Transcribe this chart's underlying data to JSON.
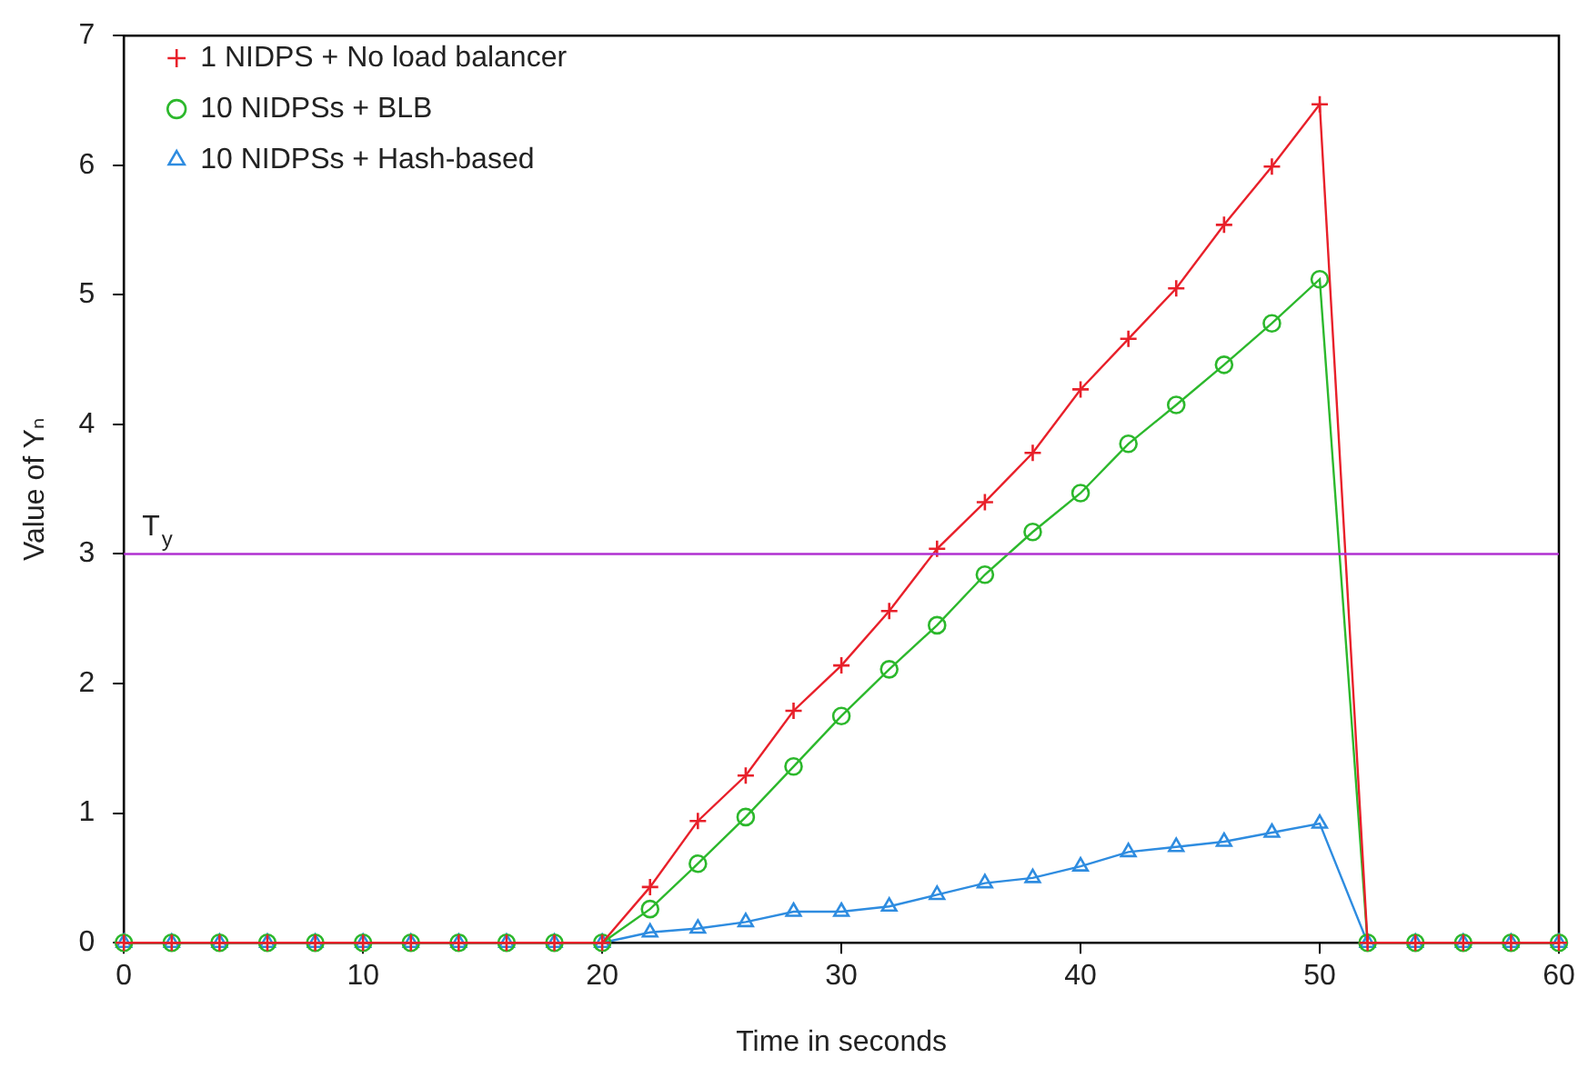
{
  "chart_data": {
    "type": "line",
    "xlabel": "Time in seconds",
    "ylabel": "Value of Yₙ",
    "x": [
      0,
      2,
      4,
      6,
      8,
      10,
      12,
      14,
      16,
      18,
      20,
      22,
      24,
      26,
      28,
      30,
      32,
      34,
      36,
      38,
      40,
      42,
      44,
      46,
      48,
      50,
      52,
      54,
      56,
      58,
      60
    ],
    "series": [
      {
        "name": "1 NIDPS + No load balancer",
        "color": "#e8202a",
        "marker": "cross",
        "values": [
          0,
          0,
          0,
          0,
          0,
          0,
          0,
          0,
          0,
          0,
          0,
          0.43,
          0.94,
          1.29,
          1.79,
          2.14,
          2.56,
          3.04,
          3.4,
          3.78,
          4.27,
          4.66,
          5.05,
          5.54,
          5.99,
          6.47,
          0,
          0,
          0,
          0,
          0
        ]
      },
      {
        "name": "10 NIDPSs + BLB",
        "color": "#2cb82c",
        "marker": "circle",
        "values": [
          0,
          0,
          0,
          0,
          0,
          0,
          0,
          0,
          0,
          0,
          0,
          0.26,
          0.61,
          0.97,
          1.36,
          1.75,
          2.11,
          2.45,
          2.84,
          3.17,
          3.47,
          3.85,
          4.15,
          4.46,
          4.78,
          5.12,
          0,
          0,
          0,
          0,
          0
        ]
      },
      {
        "name": "10 NIDPSs + Hash-based",
        "color": "#2e8ce0",
        "marker": "triangle",
        "values": [
          0,
          0,
          0,
          0,
          0,
          0,
          0,
          0,
          0,
          0,
          0,
          0.08,
          0.11,
          0.16,
          0.24,
          0.24,
          0.28,
          0.37,
          0.46,
          0.5,
          0.59,
          0.7,
          0.74,
          0.78,
          0.85,
          0.92,
          0,
          0,
          0,
          0,
          0
        ]
      }
    ],
    "xlim": [
      0,
      60
    ],
    "xticks": [
      0,
      10,
      20,
      30,
      40,
      50,
      60
    ],
    "ylim": [
      0,
      7
    ],
    "yticks": [
      0,
      1,
      2,
      3,
      4,
      5,
      6,
      7
    ],
    "ref_lines": [
      {
        "axis": "y",
        "value": 3,
        "label": "T$_{y}$",
        "color": "#b030d0"
      }
    ],
    "grid": false,
    "legend": "top left"
  }
}
